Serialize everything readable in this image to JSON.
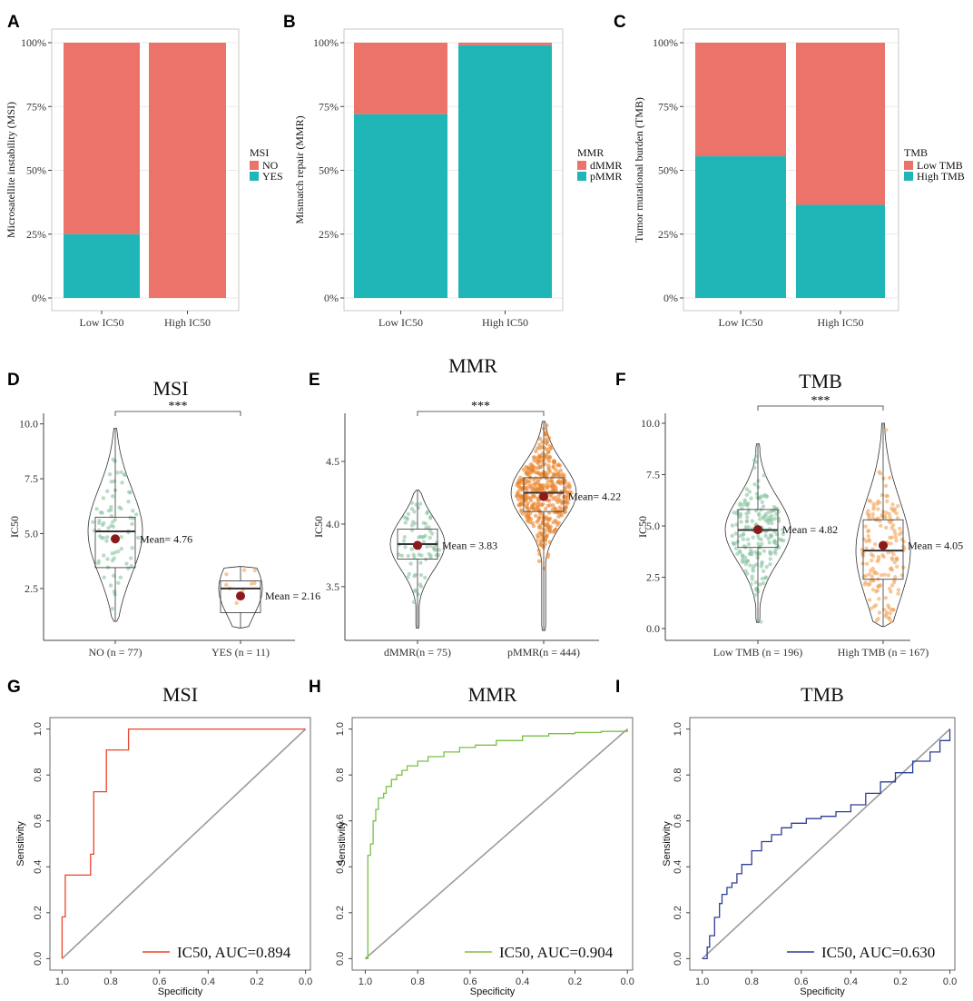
{
  "panel_labels": {
    "A": "A",
    "B": "B",
    "C": "C",
    "D": "D",
    "E": "E",
    "F": "F",
    "G": "G",
    "H": "H",
    "I": "I"
  },
  "chart_data": [
    {
      "id": "A",
      "type": "bar",
      "stacked": true,
      "categories": [
        "Low IC50",
        "High IC50"
      ],
      "series": [
        {
          "name": "YES",
          "color": "#20B5B7",
          "values": [
            25,
            0
          ]
        },
        {
          "name": "NO",
          "color": "#EC7369",
          "values": [
            75,
            100
          ]
        }
      ],
      "ylabel": "Microsatellite instability (MSI)",
      "yticks": [
        "0%",
        "25%",
        "50%",
        "75%",
        "100%"
      ],
      "legend_title": "MSI",
      "legend_items": [
        "NO",
        "YES"
      ],
      "legend_colors": [
        "#EC7369",
        "#20B5B7"
      ],
      "ylim": [
        0,
        100
      ]
    },
    {
      "id": "B",
      "type": "bar",
      "stacked": true,
      "categories": [
        "Low IC50",
        "High IC50"
      ],
      "series": [
        {
          "name": "pMMR",
          "color": "#20B5B7",
          "values": [
            72,
            99
          ]
        },
        {
          "name": "dMMR",
          "color": "#EC7369",
          "values": [
            28,
            1
          ]
        }
      ],
      "ylabel": "Mismatch repair (MMR)",
      "yticks": [
        "0%",
        "25%",
        "50%",
        "75%",
        "100%"
      ],
      "legend_title": "MMR",
      "legend_items": [
        "dMMR",
        "pMMR"
      ],
      "legend_colors": [
        "#EC7369",
        "#20B5B7"
      ],
      "ylim": [
        0,
        100
      ]
    },
    {
      "id": "C",
      "type": "bar",
      "stacked": true,
      "categories": [
        "Low IC50",
        "High IC50"
      ],
      "series": [
        {
          "name": "High TMB",
          "color": "#20B5B7",
          "values": [
            55.5,
            36.5
          ]
        },
        {
          "name": "Low TMB",
          "color": "#EC7369",
          "values": [
            44.5,
            63.5
          ]
        }
      ],
      "ylabel": "Tumor mutational burden (TMB)",
      "yticks": [
        "0%",
        "25%",
        "50%",
        "75%",
        "100%"
      ],
      "legend_title": "TMB",
      "legend_items": [
        "Low TMB",
        "High TMB"
      ],
      "legend_colors": [
        "#EC7369",
        "#20B5B7"
      ],
      "ylim": [
        0,
        100
      ]
    },
    {
      "id": "D",
      "type": "violin",
      "title": "MSI",
      "ylabel": "IC50",
      "ylim": [
        0.3,
        10.4
      ],
      "yticks": [
        2.5,
        5.0,
        7.5,
        10.0
      ],
      "ytick_labels": [
        "2.5",
        "5.0",
        "7.5",
        "10.0"
      ],
      "significance": "***",
      "groups": [
        {
          "label": "NO (n = 77)",
          "n": 77,
          "min": 1.0,
          "q1": 3.45,
          "median": 5.1,
          "q3": 5.75,
          "max": 9.8,
          "mean": 4.76,
          "mean_label": "Mean= 4.76",
          "color": "#8CC5A2"
        },
        {
          "label": "YES (n = 11)",
          "n": 11,
          "min": 0.7,
          "q1": 1.4,
          "median": 2.5,
          "q3": 2.85,
          "max": 3.5,
          "mean": 2.16,
          "mean_label": "Mean = 2.16",
          "color": "#F2A55C"
        }
      ]
    },
    {
      "id": "E",
      "type": "violin",
      "title": "MMR",
      "ylabel": "IC50",
      "ylim": [
        3.1,
        4.87
      ],
      "yticks": [
        3.5,
        4.0,
        4.5
      ],
      "ytick_labels": [
        "3.5",
        "4.0",
        "4.5"
      ],
      "significance": "***",
      "groups": [
        {
          "label": "dMMR(n = 75)",
          "n": 75,
          "min": 3.17,
          "q1": 3.72,
          "median": 3.84,
          "q3": 3.96,
          "max": 4.27,
          "mean": 3.83,
          "mean_label": "Mean = 3.83",
          "color": "#8CC5A2"
        },
        {
          "label": "pMMR(n = 444)",
          "n": 444,
          "min": 3.15,
          "q1": 4.1,
          "median": 4.25,
          "q3": 4.37,
          "max": 4.82,
          "mean": 4.22,
          "mean_label": "Mean= 4.22",
          "color": "#E9852E"
        }
      ]
    },
    {
      "id": "F",
      "type": "violin",
      "title": "TMB",
      "ylabel": "IC50",
      "ylim": [
        -0.4,
        10.4
      ],
      "yticks": [
        0.0,
        2.5,
        5.0,
        7.5,
        10.0
      ],
      "ytick_labels": [
        "0.0",
        "2.5",
        "5.0",
        "7.5",
        "10.0"
      ],
      "significance": "***",
      "groups": [
        {
          "label": "Low TMB  (n = 196)",
          "n": 196,
          "min": 0.3,
          "q1": 3.95,
          "median": 4.8,
          "q3": 5.8,
          "max": 9.0,
          "mean": 4.82,
          "mean_label": "Mean = 4.82",
          "color": "#8CC5A2"
        },
        {
          "label": "High TMB  (n = 167)",
          "n": 167,
          "min": 0.1,
          "q1": 2.4,
          "median": 3.8,
          "q3": 5.3,
          "max": 10.0,
          "mean": 4.05,
          "mean_label": "Mean = 4.05",
          "color": "#F2A55C"
        }
      ]
    },
    {
      "id": "G",
      "type": "line",
      "title": "MSI",
      "xlabel": "Specificity",
      "ylabel": "Sensitivity",
      "xlim": [
        1.05,
        -0.02
      ],
      "ylim": [
        -0.05,
        1.05
      ],
      "ticks": [
        "0.0",
        "0.2",
        "0.4",
        "0.6",
        "0.8",
        "1.0"
      ],
      "series": [
        {
          "name": "IC50, AUC=0.894",
          "color": "#E8452C",
          "x": [
            1.0,
            1.0,
            0.987,
            0.987,
            0.974,
            0.974,
            0.883,
            0.883,
            0.87,
            0.87,
            0.818,
            0.818,
            0.727,
            0.727,
            0.0
          ],
          "y": [
            0.0,
            0.182,
            0.182,
            0.364,
            0.364,
            0.364,
            0.364,
            0.455,
            0.455,
            0.727,
            0.727,
            0.909,
            0.909,
            1.0,
            1.0
          ]
        }
      ]
    },
    {
      "id": "H",
      "type": "line",
      "title": "MMR",
      "xlabel": "Specificity",
      "ylabel": "Sensitivity",
      "xlim": [
        1.05,
        -0.02
      ],
      "ylim": [
        -0.05,
        1.05
      ],
      "ticks": [
        "0.0",
        "0.2",
        "0.4",
        "0.6",
        "0.8",
        "1.0"
      ],
      "series": [
        {
          "name": "IC50, AUC=0.904",
          "color": "#7BC143",
          "x": [
            1.0,
            0.99,
            0.99,
            0.98,
            0.97,
            0.96,
            0.95,
            0.93,
            0.92,
            0.9,
            0.88,
            0.86,
            0.84,
            0.8,
            0.76,
            0.7,
            0.64,
            0.58,
            0.5,
            0.4,
            0.3,
            0.2,
            0.1,
            0.0
          ],
          "y": [
            0.0,
            0.2,
            0.45,
            0.5,
            0.6,
            0.65,
            0.7,
            0.72,
            0.75,
            0.78,
            0.8,
            0.82,
            0.84,
            0.86,
            0.88,
            0.9,
            0.92,
            0.93,
            0.95,
            0.97,
            0.98,
            0.985,
            0.99,
            1.0
          ]
        }
      ]
    },
    {
      "id": "I",
      "type": "line",
      "title": "TMB",
      "xlabel": "Specificity",
      "ylabel": "Sensitivity",
      "xlim": [
        1.05,
        -0.02
      ],
      "ylim": [
        -0.05,
        1.05
      ],
      "ticks": [
        "0.0",
        "0.2",
        "0.4",
        "0.6",
        "0.8",
        "1.0"
      ],
      "series": [
        {
          "name": "IC50, AUC=0.630",
          "color": "#2B3E9A",
          "x": [
            1.0,
            0.98,
            0.97,
            0.95,
            0.93,
            0.92,
            0.9,
            0.88,
            0.86,
            0.84,
            0.8,
            0.76,
            0.72,
            0.68,
            0.64,
            0.58,
            0.52,
            0.46,
            0.4,
            0.34,
            0.28,
            0.22,
            0.15,
            0.08,
            0.04,
            0.0
          ],
          "y": [
            0.0,
            0.05,
            0.1,
            0.18,
            0.24,
            0.28,
            0.31,
            0.33,
            0.37,
            0.41,
            0.47,
            0.51,
            0.54,
            0.57,
            0.59,
            0.61,
            0.62,
            0.64,
            0.67,
            0.72,
            0.77,
            0.81,
            0.86,
            0.9,
            0.95,
            1.0
          ]
        }
      ]
    }
  ]
}
